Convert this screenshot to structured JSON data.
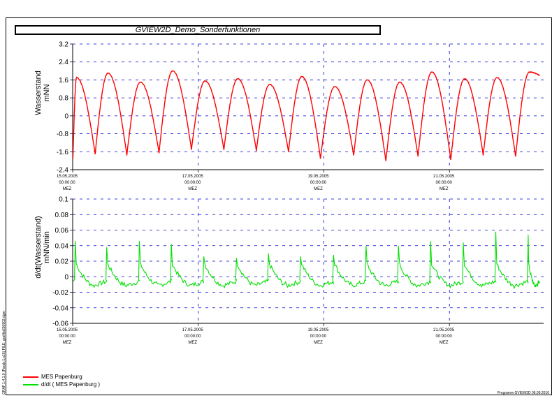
{
  "title": "GVIEW2D_Demo_Sonderfunktionen",
  "footer": "Programm GVIEW2D   06.09.2010",
  "side_note": "GRAF 1:4,1.0 (Parab.1,s15) FILE: grafikb250902.dgm",
  "colors": {
    "series1": "#ff0000",
    "series2": "#00e000",
    "grid": "#0000cc",
    "axis": "#000000"
  },
  "chart_data": [
    {
      "type": "line",
      "ylabel_line1": "Wasserstand",
      "ylabel_line2": "mNN",
      "ylim": [
        -2.4,
        3.2
      ],
      "yticks": [
        -2.4,
        -1.6,
        -0.8,
        0,
        0.8,
        1.6,
        2.4,
        3.2
      ],
      "ytick_labels": [
        "-2.4",
        "-1.6",
        "-0.8",
        "0",
        "0.8",
        "1.6",
        "2.4",
        "3.2"
      ],
      "xlim": [
        "15.05.2005 00:00:00",
        "22.05.2005 12:00:00"
      ],
      "xticks": [
        {
          "date": "15.05.2005",
          "time": "00:00:00",
          "tz": "MEZ"
        },
        {
          "date": "17.05.2005",
          "time": "00:00:00",
          "tz": "MEZ"
        },
        {
          "date": "19.05.2005",
          "time": "00:00:00",
          "tz": "MEZ"
        },
        {
          "date": "21.05.2005",
          "time": "00:00:00",
          "tz": "MEZ"
        }
      ],
      "grid": true,
      "series": [
        {
          "name": "MES Papenburg",
          "x_hours": [
            0.1,
            1.5,
            8.6,
            13.5,
            20.7,
            25.9,
            33.0,
            38.2,
            45.4,
            50.6,
            57.8,
            63.1,
            70.2,
            75.3,
            82.5,
            87.6,
            94.7,
            100.2,
            107.4,
            112.6,
            119.7,
            125.0,
            132.0,
            137.3,
            144.5,
            149.8,
            156.9,
            162.2,
            169.3,
            174.6,
            178.5
          ],
          "y": [
            -1.9,
            1.7,
            -1.7,
            1.9,
            -1.75,
            1.5,
            -1.65,
            2.0,
            -1.5,
            1.55,
            -1.5,
            1.65,
            -1.55,
            1.4,
            -1.6,
            1.75,
            -1.9,
            1.3,
            -1.75,
            1.6,
            -2.0,
            1.5,
            -1.8,
            1.95,
            -1.95,
            1.65,
            -1.75,
            1.7,
            -1.8,
            1.95,
            1.8
          ]
        }
      ]
    },
    {
      "type": "line",
      "ylabel_line1": "d/dt(Wasserstand)",
      "ylabel_line2": "mNN/min",
      "ylim": [
        -0.06,
        0.1
      ],
      "yticks": [
        -0.06,
        -0.04,
        -0.02,
        0,
        0.02,
        0.04,
        0.06,
        0.08,
        0.1
      ],
      "ytick_labels": [
        "-0.06",
        "-0.04",
        "-0.02",
        "0",
        "0.02",
        "0.04",
        "0.06",
        "0.08",
        "0.1"
      ],
      "xlim": [
        "15.05.2005 00:00:00",
        "22.05.2005 12:00:00"
      ],
      "xticks": [
        {
          "date": "15.05.2005",
          "time": "00:00:00",
          "tz": "MEZ"
        },
        {
          "date": "17.05.2005",
          "time": "00:00:00",
          "tz": "MEZ"
        },
        {
          "date": "19.05.2005",
          "time": "00:00:00",
          "tz": "MEZ"
        },
        {
          "date": "21.05.2005",
          "time": "00:00:00",
          "tz": "MEZ"
        }
      ],
      "grid": true,
      "series": [
        {
          "name": "d/dt ( MES Papenburg )",
          "spikes_x_hours": [
            1.0,
            13.0,
            25.5,
            37.7,
            50.1,
            62.6,
            74.8,
            87.1,
            99.7,
            112.1,
            124.5,
            136.8,
            149.3,
            161.7,
            174.1
          ],
          "spikes_y": [
            0.046,
            0.038,
            0.046,
            0.042,
            0.026,
            0.024,
            0.03,
            0.026,
            0.028,
            0.04,
            0.04,
            0.046,
            0.044,
            0.058,
            0.054
          ],
          "trough_y": -0.012,
          "base_y": -0.006
        }
      ]
    }
  ],
  "legend": [
    {
      "label": "MES Papenburg",
      "color": "#ff0000"
    },
    {
      "label": "d/dt ( MES Papenburg )",
      "color": "#00e000"
    }
  ]
}
